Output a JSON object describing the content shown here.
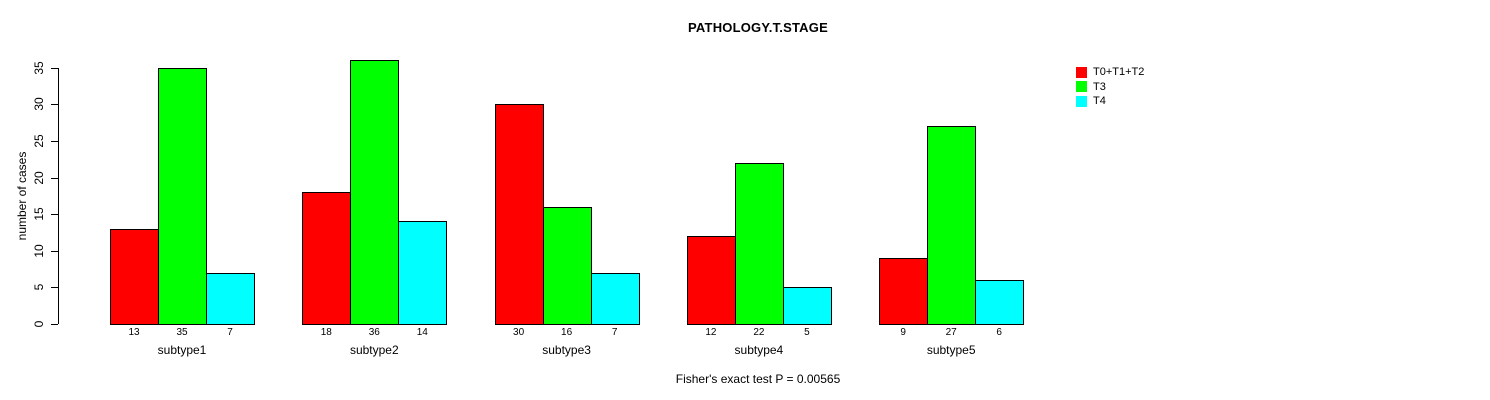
{
  "chart_data": {
    "type": "bar",
    "title": "PATHOLOGY.T.STAGE",
    "ylabel": "number of cases",
    "xlabel": "",
    "annotation": "Fisher's exact test P = 0.00565",
    "categories": [
      "subtype1",
      "subtype2",
      "subtype3",
      "subtype4",
      "subtype5"
    ],
    "series": [
      {
        "name": "T0+T1+T2",
        "color": "#ff0000",
        "values": [
          13,
          18,
          30,
          12,
          9
        ]
      },
      {
        "name": "T3",
        "color": "#00ff00",
        "values": [
          35,
          36,
          16,
          22,
          27
        ]
      },
      {
        "name": "T4",
        "color": "#00ffff",
        "values": [
          7,
          14,
          7,
          5,
          6
        ]
      }
    ],
    "yticks": [
      0,
      5,
      10,
      15,
      20,
      25,
      30,
      35
    ],
    "ylim": [
      0,
      36
    ],
    "bar_value_labels_shown": true,
    "legend_position": "top-right",
    "grid": false,
    "background_color": "#ffffff",
    "axis_color": "#000000",
    "text_color": "#000000"
  }
}
